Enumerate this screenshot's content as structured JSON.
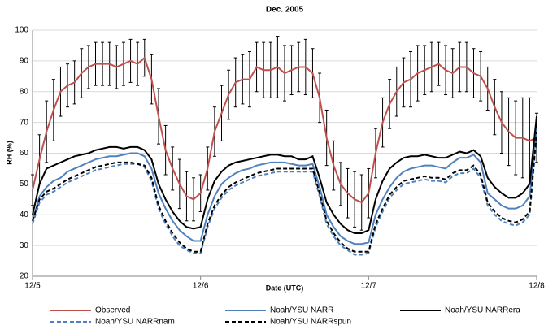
{
  "chart_data": {
    "type": "line",
    "title": "Dec. 2005",
    "x_label": "Date (UTC)",
    "y_label": "RH (%)",
    "x": [
      0,
      1,
      2,
      3,
      4,
      5,
      6,
      7,
      8,
      9,
      10,
      11,
      12,
      13,
      14,
      15,
      16,
      17,
      18,
      19,
      20,
      21,
      22,
      23,
      24,
      25,
      26,
      27,
      28,
      29,
      30,
      31,
      32,
      33,
      34,
      35,
      36,
      37,
      38,
      39,
      40,
      41,
      42,
      43,
      44,
      45,
      46,
      47,
      48,
      49,
      50,
      51,
      52,
      53,
      54,
      55,
      56,
      57,
      58,
      59,
      60,
      61,
      62,
      63,
      64,
      65,
      66,
      67,
      68,
      69,
      70,
      71,
      72
    ],
    "xlim": [
      0,
      72
    ],
    "xticks": [
      {
        "value": 0,
        "label": "12/5"
      },
      {
        "value": 24,
        "label": "12/6"
      },
      {
        "value": 48,
        "label": "12/7"
      },
      {
        "value": 72,
        "label": "12/8"
      }
    ],
    "ylim": [
      20,
      100
    ],
    "yticks": [
      20,
      30,
      40,
      50,
      60,
      70,
      80,
      90,
      100
    ],
    "grid": true,
    "legend": "bottom",
    "series": [
      {
        "name": "Observed",
        "color": "#c0504d",
        "dashed": false,
        "values": [
          48,
          58,
          67,
          74,
          80,
          82,
          83,
          86,
          88,
          89,
          89,
          89,
          88,
          89,
          90,
          89,
          91,
          84,
          72,
          61,
          55,
          50,
          46,
          45,
          47,
          55,
          67,
          73,
          79,
          83,
          84,
          84,
          88,
          87,
          87,
          88,
          86,
          87,
          88,
          88,
          86,
          78,
          65,
          56,
          50,
          47,
          45,
          44,
          47,
          60,
          70,
          76,
          80,
          83,
          84,
          86,
          87,
          88,
          89,
          87,
          86,
          88,
          88,
          86,
          85,
          81,
          75,
          70,
          67,
          65,
          65,
          64,
          65
        ],
        "errors": [
          5,
          8,
          10,
          10,
          8,
          7,
          7,
          8,
          7,
          7,
          7,
          7,
          7,
          7,
          7,
          7,
          6,
          8,
          9,
          8,
          7,
          8,
          8,
          7,
          6,
          7,
          8,
          9,
          8,
          8,
          8,
          9,
          8,
          9,
          9,
          10,
          9,
          8,
          8,
          9,
          8,
          8,
          9,
          8,
          7,
          8,
          9,
          9,
          8,
          8,
          8,
          8,
          8,
          8,
          9,
          9,
          8,
          8,
          7,
          8,
          8,
          8,
          8,
          8,
          8,
          7,
          9,
          10,
          11,
          12,
          13,
          14,
          8
        ]
      },
      {
        "name": "Noah/YSU NARR",
        "color": "#4f81bd",
        "dashed": false,
        "values": [
          38,
          46,
          49,
          51,
          52,
          54,
          55,
          56,
          57,
          58,
          58.5,
          59,
          59,
          59.5,
          60,
          60,
          59,
          55,
          47,
          42,
          38,
          35,
          33,
          31.5,
          31.5,
          40,
          46,
          50,
          52,
          53.5,
          54.5,
          55,
          56,
          56.5,
          57,
          57,
          57,
          56.5,
          56,
          56,
          56.5,
          49,
          40,
          36,
          33,
          31.5,
          30.5,
          30.5,
          31,
          40,
          45,
          49,
          52,
          54,
          55,
          55.5,
          56,
          56,
          55.5,
          55,
          57,
          58.5,
          58.5,
          59.5,
          57,
          47,
          45,
          43,
          42,
          42,
          43,
          46,
          68
        ]
      },
      {
        "name": "Noah/YSU NARRera",
        "color": "#000000",
        "dashed": false,
        "values": [
          40,
          50,
          55,
          56,
          57,
          58,
          59,
          59.5,
          60,
          61,
          61.5,
          62,
          62,
          61.5,
          62,
          62,
          61,
          58,
          50,
          45,
          41,
          38,
          36,
          35.5,
          36,
          45,
          51,
          54,
          56,
          57,
          57.5,
          58,
          58.5,
          59,
          59.5,
          59.5,
          59,
          59,
          58,
          58,
          59,
          52,
          44,
          40,
          37,
          35,
          34,
          34,
          35,
          45,
          51,
          55,
          57,
          58.5,
          59,
          59,
          59.5,
          59,
          58.5,
          58.5,
          59.5,
          60.5,
          60,
          61,
          59,
          52,
          49,
          47,
          45.5,
          45.5,
          47,
          50,
          72
        ]
      },
      {
        "name": "Noah/YSU NARRnam",
        "color": "#4f81bd",
        "dashed": true,
        "values": [
          37,
          44,
          46.5,
          47.5,
          49,
          50.5,
          51.5,
          52.5,
          53.5,
          54.5,
          55,
          55.5,
          56,
          56.5,
          56.5,
          56.5,
          55.5,
          51,
          42,
          37,
          33,
          30,
          28.5,
          27.5,
          27.5,
          36,
          42,
          45.5,
          48,
          49.5,
          50.5,
          51.5,
          52.5,
          53,
          53.5,
          54,
          54,
          54,
          54,
          54,
          54,
          46,
          37,
          33,
          30,
          28.5,
          27,
          27,
          27.5,
          36,
          41,
          45.5,
          48,
          50,
          50.5,
          51,
          51.5,
          51,
          51,
          50.5,
          52.5,
          53.5,
          53.5,
          55,
          52,
          43,
          40,
          38,
          37,
          36.5,
          37.5,
          40,
          66
        ]
      },
      {
        "name": "Noah/YSU NARRspun",
        "color": "#000000",
        "dashed": true,
        "values": [
          38,
          45,
          47.5,
          48.5,
          50,
          51.5,
          52.5,
          53.5,
          54.5,
          55.5,
          56,
          56.5,
          57,
          57,
          57,
          56.5,
          56,
          52,
          43,
          38,
          34,
          31,
          29,
          28,
          28,
          37,
          43,
          46.5,
          49,
          50.5,
          51.5,
          52.5,
          53.5,
          54,
          54.5,
          55,
          55,
          55,
          55,
          55,
          55,
          47,
          38,
          34,
          31,
          29,
          28,
          28,
          28,
          37,
          42,
          46.5,
          49,
          51,
          51.5,
          52,
          52.5,
          52,
          52,
          51.5,
          53.5,
          54.5,
          54.5,
          56,
          53,
          44,
          41,
          39,
          38,
          37.5,
          38.5,
          41,
          67
        ]
      }
    ]
  }
}
